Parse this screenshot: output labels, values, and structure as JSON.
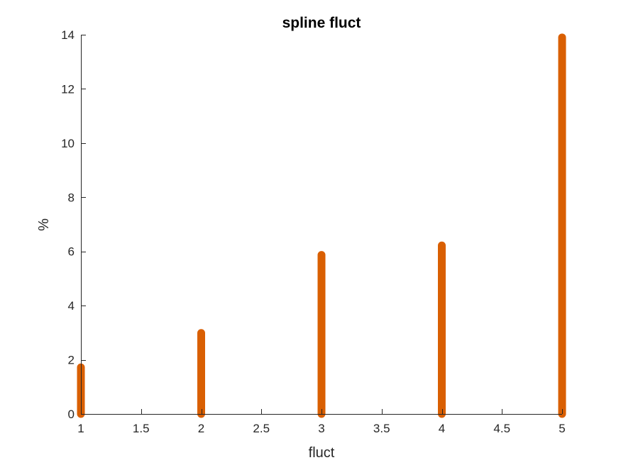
{
  "chart_data": {
    "type": "bar",
    "title": "spline fluct",
    "xlabel": "fluct",
    "ylabel": "%",
    "x": [
      1,
      2,
      3,
      4,
      5
    ],
    "values": [
      1.72,
      2.99,
      5.87,
      6.22,
      13.9
    ],
    "xlim": [
      1,
      5
    ],
    "ylim": [
      0,
      14
    ],
    "xticks": [
      "1",
      "1.5",
      "2",
      "2.5",
      "3",
      "3.5",
      "4",
      "4.5",
      "5"
    ],
    "yticks": [
      "0",
      "2",
      "4",
      "6",
      "8",
      "10",
      "12",
      "14"
    ],
    "grid": false,
    "color": "#D95F02"
  }
}
